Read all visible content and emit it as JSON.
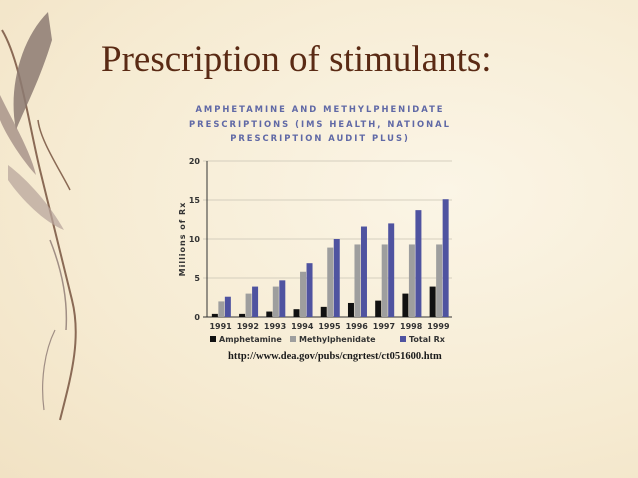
{
  "slide": {
    "title": "Prescription of stimulants:",
    "source": "http://www.dea.gov/pubs/cngrtest/ct051600.htm"
  },
  "colors": {
    "title": "#5a2a14",
    "chart_title": "#6069a6",
    "amphetamine": "#111111",
    "methylphenidate": "#9e9e9e",
    "total_rx": "#4f53a0"
  },
  "chart_data": {
    "type": "bar",
    "title_lines": [
      "AMPHETAMINE AND METHYLPHENIDATE",
      "PRESCRIPTIONS (IMS HEALTH, NATIONAL",
      "PRESCRIPTION AUDIT PLUS)"
    ],
    "ylabel": "Millions of Rx",
    "xlabel": "",
    "categories": [
      "1991",
      "1992",
      "1993",
      "1994",
      "1995",
      "1996",
      "1997",
      "1998",
      "1999"
    ],
    "ylim": [
      0,
      20
    ],
    "yticks": [
      "0",
      "5",
      "10",
      "15",
      "20"
    ],
    "grid": true,
    "legend_position": "bottom",
    "series": [
      {
        "name": "Amphetamine",
        "color": "#111111",
        "values": [
          0.4,
          0.4,
          0.7,
          1.0,
          1.3,
          1.8,
          2.1,
          3.0,
          3.9
        ]
      },
      {
        "name": "Methylphenidate",
        "color": "#9e9e9e",
        "values": [
          2.0,
          3.0,
          3.9,
          5.8,
          8.9,
          9.3,
          9.3,
          9.3,
          9.3
        ]
      },
      {
        "name": "Total Rx",
        "color": "#4f53a0",
        "values": [
          2.6,
          3.9,
          4.7,
          6.9,
          10.0,
          11.6,
          12.0,
          13.7,
          15.1
        ]
      }
    ]
  }
}
